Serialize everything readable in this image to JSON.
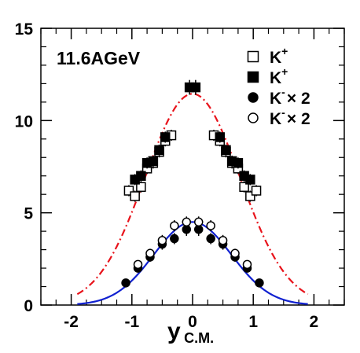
{
  "chart_data": {
    "type": "scatter",
    "title": "",
    "annotation": "11.6AGeV",
    "xlabel": {
      "main": "y",
      "sub": "C.M."
    },
    "ylabel": "",
    "xlim": [
      -2.5,
      2.5
    ],
    "ylim": [
      0,
      15
    ],
    "x_ticks": [
      -2,
      -1,
      0,
      1,
      2
    ],
    "x_tick_labels": [
      "-2",
      "-1",
      "0",
      "1",
      "2"
    ],
    "y_ticks": [
      0,
      5,
      10,
      15
    ],
    "y_tick_labels": [
      "0",
      "5",
      "10",
      "15"
    ],
    "grid": false,
    "legend_position": "top-right",
    "series": [
      {
        "legend_main": "K",
        "legend_sup": "+",
        "legend_suffix": "",
        "marker": "open-square",
        "x": [
          -1.05,
          -0.95,
          -0.85,
          -0.75,
          -0.65,
          -0.55,
          -0.45,
          -0.35,
          0.35,
          0.45,
          0.55,
          0.65,
          0.75,
          0.85,
          0.95,
          1.05
        ],
        "y": [
          6.2,
          5.9,
          6.4,
          7.4,
          7.7,
          8.3,
          8.9,
          9.2,
          9.2,
          8.9,
          8.3,
          7.7,
          7.4,
          6.4,
          5.9,
          6.2
        ],
        "err": [
          0.3,
          0.3,
          0.3,
          0.3,
          0.3,
          0.3,
          0.3,
          0.3,
          0.3,
          0.3,
          0.3,
          0.3,
          0.3,
          0.3,
          0.3,
          0.3
        ]
      },
      {
        "legend_main": "K",
        "legend_sup": "+",
        "legend_suffix": "",
        "marker": "filled-square",
        "x": [
          -0.95,
          -0.85,
          -0.75,
          -0.65,
          -0.55,
          -0.45,
          -0.05,
          0.05,
          0.45,
          0.55,
          0.65,
          0.75,
          0.85,
          0.95
        ],
        "y": [
          6.8,
          7.0,
          7.7,
          7.8,
          8.4,
          9.1,
          11.8,
          11.8,
          9.1,
          8.4,
          7.8,
          7.7,
          7.0,
          6.8
        ],
        "err": [
          0.3,
          0.3,
          0.3,
          0.3,
          0.3,
          0.3,
          0.4,
          0.4,
          0.3,
          0.3,
          0.3,
          0.3,
          0.3,
          0.3
        ]
      },
      {
        "legend_main": "K",
        "legend_sup": "-",
        "legend_suffix": "× 2",
        "marker": "filled-circle",
        "x": [
          -1.1,
          -0.9,
          -0.7,
          -0.5,
          -0.3,
          -0.1,
          0.1,
          0.3,
          0.5,
          0.7,
          0.9,
          1.1
        ],
        "y": [
          1.2,
          2.0,
          2.6,
          3.3,
          3.6,
          4.1,
          4.1,
          3.6,
          3.3,
          2.6,
          2.0,
          1.2
        ],
        "err": [
          0.2,
          0.2,
          0.25,
          0.3,
          0.3,
          0.35,
          0.35,
          0.3,
          0.3,
          0.25,
          0.2,
          0.2
        ]
      },
      {
        "legend_main": "K",
        "legend_sup": "-",
        "legend_suffix": "× 2",
        "marker": "open-circle",
        "x": [
          -0.9,
          -0.7,
          -0.5,
          -0.3,
          -0.1,
          0.1,
          0.3,
          0.5,
          0.7,
          0.9
        ],
        "y": [
          2.2,
          2.8,
          3.5,
          4.3,
          4.5,
          4.5,
          4.3,
          3.5,
          2.8,
          2.2
        ],
        "err": [
          0.2,
          0.25,
          0.3,
          0.3,
          0.3,
          0.3,
          0.3,
          0.3,
          0.25,
          0.2
        ]
      }
    ],
    "curves": [
      {
        "style": "dash-dot",
        "color": "#e8131b",
        "amplitude": 11.45,
        "sigma": 0.78,
        "range": [
          -1.9,
          1.9
        ]
      },
      {
        "style": "solid",
        "color": "#1020d0",
        "amplitude": 4.5,
        "sigma": 0.64,
        "range": [
          -1.9,
          1.9
        ]
      }
    ]
  }
}
